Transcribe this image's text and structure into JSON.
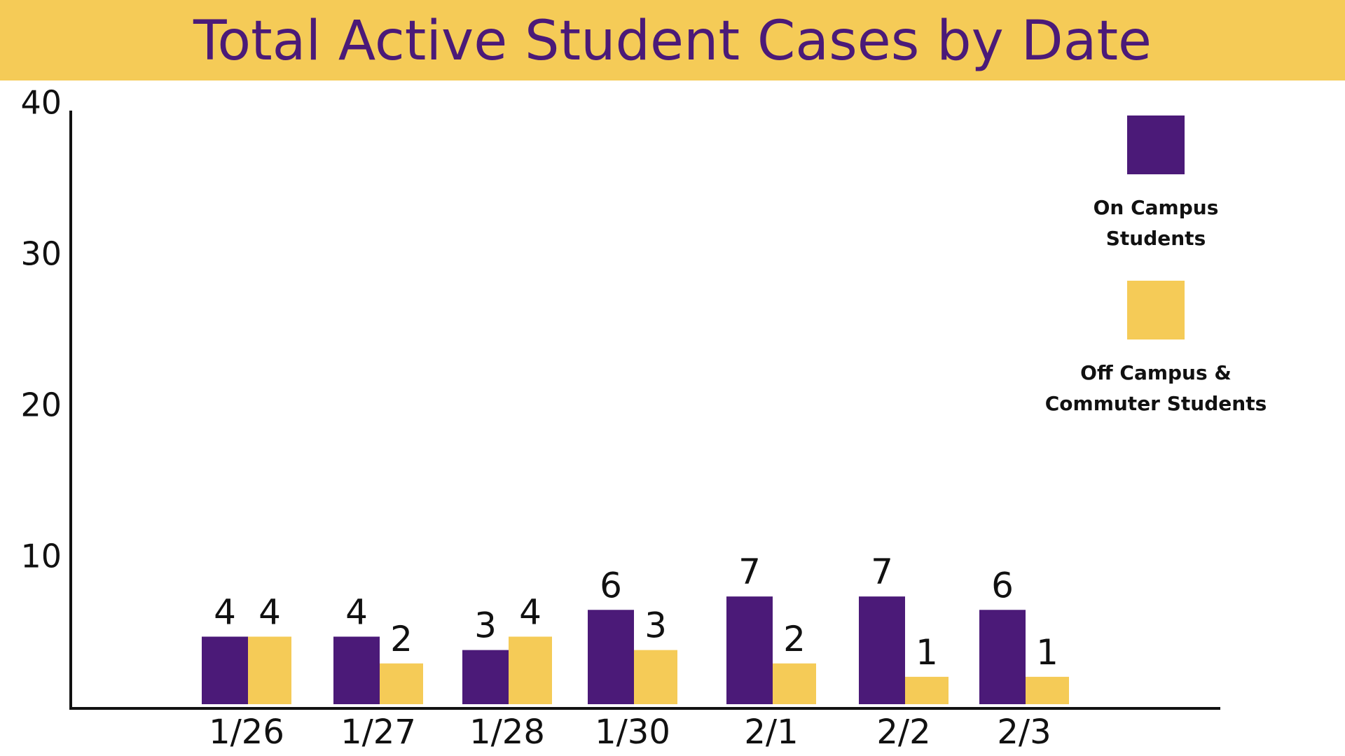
{
  "title": "Total Active Student Cases by Date",
  "colors": {
    "on_campus": "#4b1a78",
    "off_campus": "#f5cb57",
    "title_bar": "#f5cb57",
    "axis": "#111111"
  },
  "legend": {
    "items": [
      {
        "label": "On Campus\nStudents",
        "color": "#4b1a78"
      },
      {
        "label": "Off Campus &\nCommuter Students",
        "color": "#f5cb57"
      }
    ]
  },
  "chart_data": {
    "type": "bar",
    "title": "Total Active Student Cases by Date",
    "xlabel": "",
    "ylabel": "",
    "categories": [
      "1/26",
      "1/27",
      "1/28",
      "1/30",
      "2/1",
      "2/2",
      "2/3"
    ],
    "series": [
      {
        "name": "On Campus Students",
        "values": [
          4,
          4,
          3,
          6,
          7,
          7,
          6
        ]
      },
      {
        "name": "Off Campus & Commuter Students",
        "values": [
          4,
          2,
          4,
          3,
          2,
          1,
          1
        ]
      }
    ],
    "y_ticks": [
      10,
      20,
      30,
      40
    ],
    "ylim": [
      0,
      40
    ],
    "grid": false,
    "legend_position": "right"
  }
}
